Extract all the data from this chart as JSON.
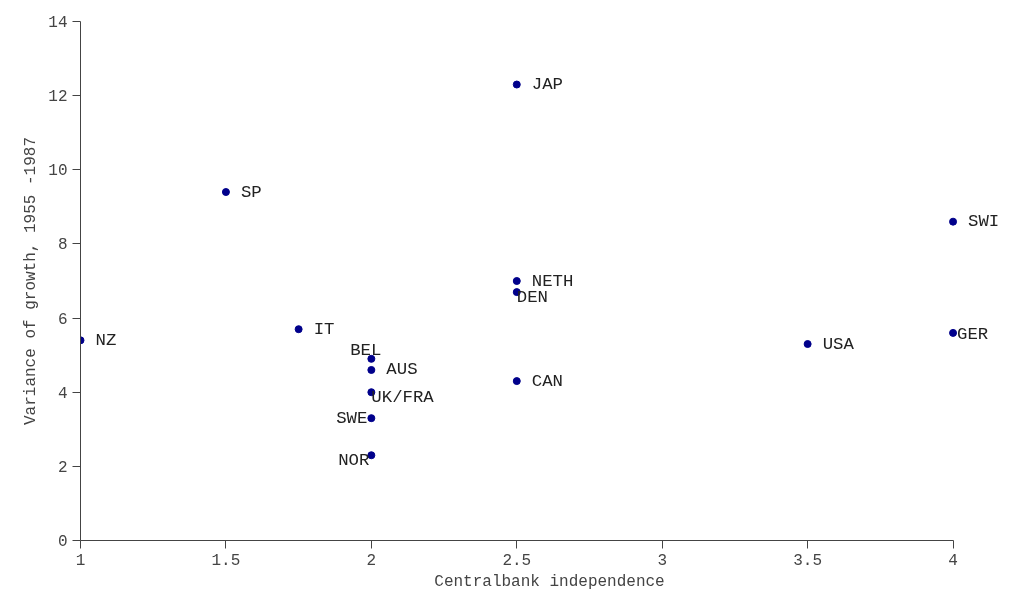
{
  "chart_data": {
    "type": "scatter",
    "xlabel": "Centralbank independence",
    "ylabel": "Variance of growth, 1955 -1987",
    "x": [
      1,
      1.5,
      1.75,
      2,
      2,
      2,
      2,
      2,
      2.5,
      2.5,
      2.5,
      2.5,
      3.5,
      4,
      4
    ],
    "series": [
      {
        "color": "#00008b",
        "values": [
          5.4,
          9.4,
          5.7,
          4.9,
          4.6,
          4.0,
          3.3,
          2.3,
          12.3,
          7.0,
          6.7,
          4.3,
          5.3,
          8.6,
          5.6
        ]
      }
    ],
    "annotations": [
      {
        "text": "NZ",
        "x": 1,
        "y": 5.4
      },
      {
        "text": "SP",
        "x": 1.5,
        "y": 9.4
      },
      {
        "text": "IT",
        "x": 1.75,
        "y": 5.7
      },
      {
        "text": "BEL",
        "x": 2,
        "y": 4.9
      },
      {
        "text": "AUS",
        "x": 2,
        "y": 4.6
      },
      {
        "text": "UK/FRA",
        "x": 2,
        "y": 4.0
      },
      {
        "text": "SWE",
        "x": 2,
        "y": 3.3
      },
      {
        "text": "NOR",
        "x": 2,
        "y": 2.3
      },
      {
        "text": "JAP",
        "x": 2.5,
        "y": 12.3
      },
      {
        "text": "NETH",
        "x": 2.5,
        "y": 7.0
      },
      {
        "text": "DEN",
        "x": 2.5,
        "y": 6.7
      },
      {
        "text": "CAN",
        "x": 2.5,
        "y": 4.3
      },
      {
        "text": "USA",
        "x": 3.5,
        "y": 5.3
      },
      {
        "text": "SWI",
        "x": 4,
        "y": 8.6
      },
      {
        "text": "GER",
        "x": 4,
        "y": 5.6
      }
    ],
    "xlim": [
      1,
      4
    ],
    "xticks": [
      1,
      1.5,
      2,
      2.5,
      3,
      3.5,
      4
    ],
    "ylim": [
      0,
      14
    ],
    "yticks": [
      0,
      2,
      4,
      6,
      8,
      10,
      12,
      14
    ],
    "grid": false,
    "marker": "circle"
  }
}
